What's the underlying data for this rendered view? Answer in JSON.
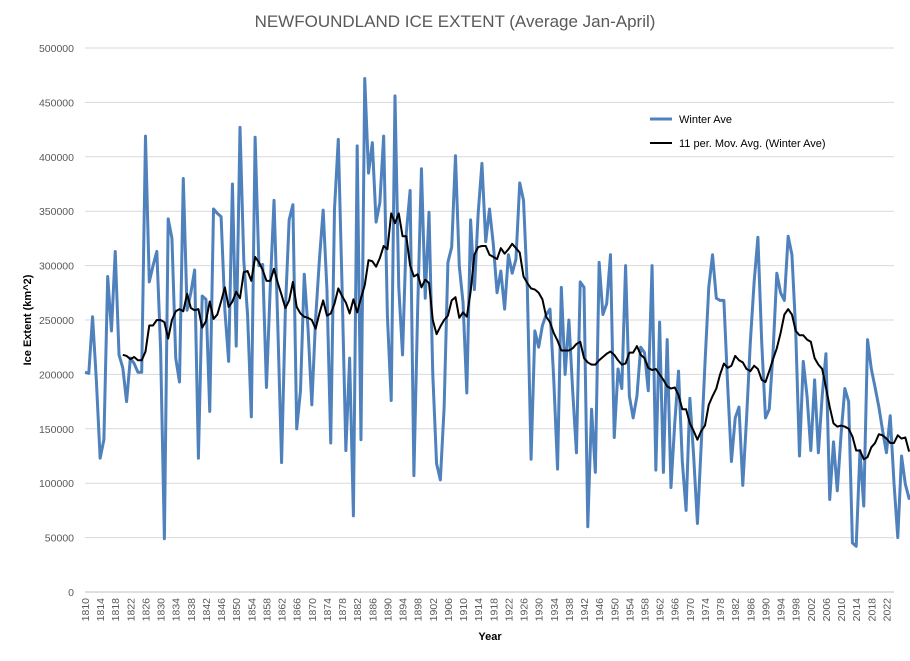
{
  "chart_data": {
    "type": "line",
    "title": "NEWFOUNDLAND ICE EXTENT (Average Jan-April)",
    "xlabel": "Year",
    "ylabel": "Ice Extent (km^2)",
    "xlim": [
      1810,
      2024
    ],
    "ylim": [
      0,
      500000
    ],
    "y_ticks": [
      "0",
      "50000",
      "100000",
      "150000",
      "200000",
      "250000",
      "300000",
      "350000",
      "400000",
      "450000",
      "500000"
    ],
    "x_tick_labels": [
      "1810",
      "1814",
      "1818",
      "1822",
      "1826",
      "1830",
      "1834",
      "1838",
      "1842",
      "1846",
      "1850",
      "1854",
      "1858",
      "1862",
      "1866",
      "1870",
      "1874",
      "1878",
      "1882",
      "1886",
      "1890",
      "1894",
      "1898",
      "1902",
      "1906",
      "1910",
      "1914",
      "1918",
      "1922",
      "1926",
      "1930",
      "1934",
      "1938",
      "1942",
      "1946",
      "1950",
      "1954",
      "1958",
      "1962",
      "1966",
      "1970",
      "1974",
      "1978",
      "1982",
      "1986",
      "1990",
      "1994",
      "1998",
      "2002",
      "2006",
      "2010",
      "2014",
      "2018",
      "2022"
    ],
    "grid": "horizontal",
    "legend_position": "top-right",
    "series": [
      {
        "name": "Winter Ave",
        "color": "#4F81BD",
        "start_year": 1810,
        "values": [
          202000,
          201000,
          253000,
          195000,
          123000,
          140000,
          290000,
          240000,
          313000,
          218000,
          206000,
          175000,
          215000,
          210000,
          202000,
          202000,
          419000,
          285000,
          300000,
          313000,
          223000,
          49000,
          343000,
          325000,
          215000,
          193000,
          380000,
          259000,
          275000,
          296000,
          123000,
          272000,
          269000,
          166000,
          352000,
          348000,
          345000,
          259000,
          212000,
          375000,
          226000,
          427000,
          305000,
          255000,
          161000,
          418000,
          300000,
          301000,
          188000,
          280000,
          360000,
          245000,
          119000,
          259000,
          342000,
          356000,
          150000,
          185000,
          292000,
          242000,
          172000,
          251000,
          305000,
          351000,
          278000,
          137000,
          352000,
          416000,
          280000,
          130000,
          215000,
          70000,
          410000,
          140000,
          472000,
          385000,
          413000,
          340000,
          358000,
          419000,
          253000,
          176000,
          456000,
          280000,
          218000,
          330000,
          369000,
          107000,
          260000,
          389000,
          270000,
          349000,
          200000,
          118000,
          103000,
          170000,
          303000,
          317000,
          401000,
          300000,
          266000,
          183000,
          342000,
          278000,
          348000,
          394000,
          322000,
          352000,
          320000,
          275000,
          295000,
          260000,
          310000,
          293000,
          306000,
          376000,
          360000,
          280000,
          122000,
          240000,
          225000,
          245000,
          255000,
          260000,
          195000,
          113000,
          280000,
          200000,
          250000,
          185000,
          128000,
          285000,
          280000,
          60000,
          168000,
          110000,
          303000,
          255000,
          265000,
          310000,
          142000,
          205000,
          187000,
          300000,
          180000,
          160000,
          180000,
          225000,
          220000,
          185000,
          300000,
          112000,
          248000,
          110000,
          232000,
          96000,
          155000,
          203000,
          120000,
          75000,
          178000,
          125000,
          63000,
          135000,
          210000,
          280000,
          310000,
          270000,
          268000,
          268000,
          190000,
          120000,
          160000,
          170000,
          98000,
          160000,
          230000,
          285000,
          326000,
          230000,
          160000,
          168000,
          220000,
          293000,
          275000,
          268000,
          327000,
          310000,
          240000,
          125000,
          212000,
          180000,
          130000,
          195000,
          128000,
          180000,
          219000,
          85000,
          138000,
          93000,
          145000,
          187000,
          175000,
          45000,
          42000,
          130000,
          79000,
          232000,
          205000,
          188000,
          170000,
          148000,
          128000,
          162000,
          100000,
          50000,
          125000,
          99000,
          86000,
          90000
        ]
      },
      {
        "name": "11 per. Mov. Avg. (Winter Ave)",
        "color": "#000000",
        "start_year": 1820,
        "values": [
          218000,
          217000,
          214000,
          216000,
          213000,
          213000,
          221000,
          245000,
          245000,
          250000,
          250000,
          248000,
          233000,
          250000,
          258000,
          260000,
          258000,
          274000,
          261000,
          259000,
          260000,
          243000,
          249000,
          267000,
          251000,
          255000,
          267000,
          280000,
          262000,
          267000,
          276000,
          270000,
          294000,
          295000,
          286000,
          308000,
          303000,
          296000,
          286000,
          286000,
          297000,
          284000,
          273000,
          261000,
          268000,
          285000,
          262000,
          256000,
          253000,
          252000,
          250000,
          242000,
          256000,
          268000,
          254000,
          256000,
          265000,
          279000,
          272000,
          266000,
          256000,
          269000,
          257000,
          270000,
          282000,
          305000,
          304000,
          299000,
          307000,
          318000,
          315000,
          348000,
          339000,
          348000,
          327000,
          327000,
          300000,
          290000,
          292000,
          280000,
          287000,
          284000,
          250000,
          237000,
          244000,
          250000,
          254000,
          268000,
          271000,
          252000,
          257000,
          253000,
          276000,
          310000,
          317000,
          318000,
          318000,
          310000,
          308000,
          306000,
          316000,
          311000,
          315000,
          320000,
          316000,
          312000,
          290000,
          284000,
          279000,
          278000,
          275000,
          269000,
          253000,
          248000,
          238000,
          231000,
          222000,
          222000,
          222000,
          224000,
          228000,
          230000,
          215000,
          211000,
          209000,
          209000,
          213000,
          216000,
          219000,
          221000,
          218000,
          213000,
          209000,
          210000,
          220000,
          220000,
          226000,
          218000,
          215000,
          206000,
          204000,
          205000,
          200000,
          195000,
          189000,
          187000,
          188000,
          181000,
          168000,
          168000,
          155000,
          148000,
          140000,
          148000,
          153000,
          172000,
          180000,
          187000,
          200000,
          210000,
          206000,
          208000,
          217000,
          213000,
          211000,
          205000,
          203000,
          208000,
          205000,
          195000,
          193000,
          203000,
          214000,
          224000,
          238000,
          255000,
          260000,
          255000,
          240000,
          236000,
          236000,
          232000,
          230000,
          215000,
          209000,
          205000,
          188000,
          170000,
          155000,
          152000,
          153000,
          152000,
          150000,
          143000,
          130000,
          130000,
          122000,
          124000,
          133000,
          137000,
          145000,
          144000,
          141000,
          137000,
          137000,
          144000,
          141000,
          142000,
          129000
        ]
      }
    ]
  }
}
